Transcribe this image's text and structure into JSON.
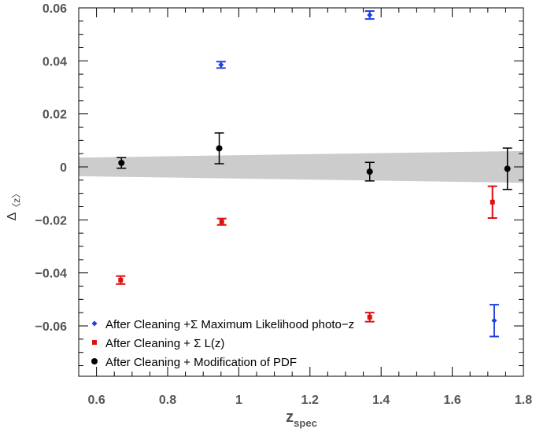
{
  "chart_data": {
    "type": "scatter",
    "xlabel": "z",
    "xlabel_sub": "spec",
    "ylabel": "Δ",
    "ylabel_sub": "〈z〉",
    "xlim": [
      0.55,
      1.8
    ],
    "ylim": [
      -0.079,
      0.06
    ],
    "xticks": [
      0.6,
      0.8,
      1.0,
      1.2,
      1.4,
      1.6,
      1.8
    ],
    "xtick_labels": [
      "0.6",
      "0.8",
      "1",
      "1.2",
      "1.4",
      "1.6",
      "1.8"
    ],
    "yticks": [
      0.06,
      0.04,
      0.02,
      0.0,
      -0.02,
      -0.04,
      -0.06
    ],
    "ytick_labels": [
      "0.06",
      "0.04",
      "0.02",
      "0",
      "−0.02",
      "−0.04",
      "−0.06"
    ],
    "grid": false,
    "legend_position": "bottom-left",
    "band": {
      "color": "#cccccc",
      "x": [
        0.55,
        1.8
      ],
      "upper": [
        0.0035,
        0.006
      ],
      "lower": [
        -0.0035,
        -0.006
      ]
    },
    "series": [
      {
        "name": "After Cleaning +Σ Maximum Likelihood photo−z",
        "color": "#1f3fe0",
        "marker": "diamond",
        "points": [
          {
            "x": 0.95,
            "y": 0.0385,
            "err": 0.0012
          },
          {
            "x": 1.368,
            "y": 0.0573,
            "err": 0.0015
          },
          {
            "x": 1.718,
            "y": -0.058,
            "err": 0.006
          }
        ]
      },
      {
        "name": " After Cleaning + Σ L(z)",
        "color": "#e01010",
        "marker": "square",
        "points": [
          {
            "x": 0.668,
            "y": -0.0427,
            "err": 0.0015
          },
          {
            "x": 0.952,
            "y": -0.0207,
            "err": 0.0012
          },
          {
            "x": 1.368,
            "y": -0.0567,
            "err": 0.0017
          },
          {
            "x": 1.713,
            "y": -0.0133,
            "err": 0.006
          }
        ]
      },
      {
        "name": "After Cleaning + Modification of PDF",
        "color": "#000000",
        "marker": "circle",
        "points": [
          {
            "x": 0.67,
            "y": 0.0015,
            "err": 0.002
          },
          {
            "x": 0.945,
            "y": 0.007,
            "err": 0.0058
          },
          {
            "x": 1.368,
            "y": -0.0018,
            "err": 0.0035
          },
          {
            "x": 1.755,
            "y": -0.0007,
            "err": 0.0078
          }
        ]
      }
    ]
  }
}
